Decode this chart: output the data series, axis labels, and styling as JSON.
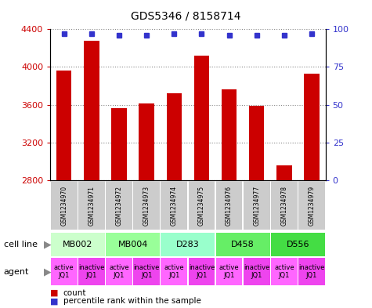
{
  "title": "GDS5346 / 8158714",
  "samples": [
    "GSM1234970",
    "GSM1234971",
    "GSM1234972",
    "GSM1234973",
    "GSM1234974",
    "GSM1234975",
    "GSM1234976",
    "GSM1234977",
    "GSM1234978",
    "GSM1234979"
  ],
  "counts": [
    3960,
    4280,
    3560,
    3610,
    3720,
    4120,
    3760,
    3590,
    2960,
    3930
  ],
  "percentiles": [
    97,
    97,
    96,
    96,
    97,
    97,
    96,
    96,
    96,
    97
  ],
  "ylim_left": [
    2800,
    4400
  ],
  "ylim_right": [
    0,
    100
  ],
  "yticks_left": [
    2800,
    3200,
    3600,
    4000,
    4400
  ],
  "yticks_right": [
    0,
    25,
    50,
    75,
    100
  ],
  "bar_color": "#cc0000",
  "dot_color": "#3333cc",
  "cell_lines": [
    {
      "label": "MB002",
      "cols": [
        0,
        1
      ],
      "color": "#ccffcc"
    },
    {
      "label": "MB004",
      "cols": [
        2,
        3
      ],
      "color": "#99ff99"
    },
    {
      "label": "D283",
      "cols": [
        4,
        5
      ],
      "color": "#99ffcc"
    },
    {
      "label": "D458",
      "cols": [
        6,
        7
      ],
      "color": "#66ee66"
    },
    {
      "label": "D556",
      "cols": [
        8,
        9
      ],
      "color": "#44dd44"
    }
  ],
  "agent_colors_active": "#ff66ff",
  "agent_colors_inactive": "#ee44ee",
  "left_label_color": "#888888",
  "grid_color": "#888888",
  "sample_box_color": "#cccccc",
  "bar_width": 0.55,
  "title_fontsize": 10,
  "tick_fontsize": 8,
  "sample_fontsize": 5.5,
  "cell_fontsize": 8,
  "agent_fontsize": 6,
  "legend_fontsize": 7.5
}
